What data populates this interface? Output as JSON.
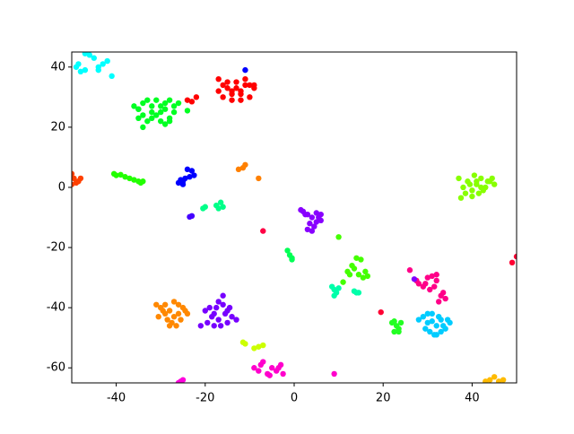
{
  "chart_data": {
    "type": "scatter",
    "xlim": [
      -50,
      50
    ],
    "xticks": [
      -40,
      -20,
      0,
      20,
      40
    ],
    "ylim": [
      -65,
      45
    ],
    "yticks": [
      -60,
      -40,
      -20,
      0,
      20,
      40
    ],
    "series": [
      {
        "color": "#00ffff",
        "x": [
          -49,
          -48,
          -47,
          -46,
          -45,
          -44,
          -43,
          -42,
          -41,
          -47,
          -44,
          -48.5
        ],
        "y": [
          40,
          38.5,
          39,
          44,
          43,
          40,
          41,
          42,
          37,
          44.5,
          39,
          41
        ]
      },
      {
        "color": "#00ff22",
        "x": [
          -36,
          -35,
          -34,
          -33,
          -32,
          -35,
          -34,
          -31,
          -30,
          -29,
          -28,
          -27,
          -30,
          -31,
          -32,
          -33,
          -29,
          -28,
          -27,
          -26,
          -34,
          -35,
          -30,
          -29,
          -24,
          -32,
          -28
        ],
        "y": [
          27,
          26,
          28,
          29,
          27,
          23,
          20,
          24,
          22,
          21,
          23,
          25,
          27,
          29,
          25,
          22,
          28,
          29,
          27,
          28,
          24,
          26,
          25,
          26,
          25.5,
          23,
          22
        ]
      },
      {
        "color": "#ff0000",
        "x": [
          -17,
          -16,
          -15,
          -14,
          -13,
          -12,
          -11,
          -10,
          -9,
          -16,
          -14,
          -12,
          -10,
          -15,
          -13,
          -11,
          -17,
          -24,
          -22,
          -23,
          -9,
          -12,
          -14
        ],
        "y": [
          32,
          34,
          33,
          31,
          35,
          32,
          36,
          34,
          33,
          30,
          29,
          31,
          30,
          35,
          33,
          34,
          36,
          29,
          30,
          28.5,
          34,
          29,
          32
        ]
      },
      {
        "color": "#0000ff",
        "x": [
          -11,
          -26,
          -25.5,
          -25,
          -24.5,
          -24,
          -23,
          -22.5,
          -23.5,
          -25
        ],
        "y": [
          39,
          1.5,
          2.5,
          2,
          3,
          6,
          5.5,
          4,
          3.5,
          1
        ]
      },
      {
        "color": "#ff4000",
        "x": [
          -50,
          -49.5,
          -49,
          -48,
          -48.5,
          -50
        ],
        "y": [
          4.5,
          3,
          1.5,
          3,
          2,
          1
        ]
      },
      {
        "color": "#22ff00",
        "x": [
          -40.5,
          -40,
          -39,
          -38,
          -37,
          -36,
          -35,
          -34.5,
          -34
        ],
        "y": [
          4.5,
          4,
          4.2,
          3.5,
          3,
          2.5,
          2,
          1.5,
          2
        ]
      },
      {
        "color": "#ff8000",
        "x": [
          -12.5,
          -11.5,
          -11,
          -8
        ],
        "y": [
          6,
          6.5,
          7.5,
          3
        ]
      },
      {
        "color": "#00ff88",
        "x": [
          -20.5,
          -20,
          -17.5,
          -16.5,
          -16,
          -17
        ],
        "y": [
          -7,
          -6.5,
          -6,
          -5,
          -6.5,
          -7
        ]
      },
      {
        "color": "#4400ff",
        "x": [
          -23.5,
          -23
        ],
        "y": [
          -9.8,
          -9.5
        ]
      },
      {
        "color": "#ff0044",
        "x": [
          -7
        ],
        "y": [
          -14.5
        ]
      },
      {
        "color": "#8800ff",
        "x": [
          1.5,
          2,
          3,
          4,
          5,
          6,
          3.5,
          4.5,
          5.5,
          2.5,
          3,
          4,
          6,
          5
        ],
        "y": [
          -7.5,
          -8,
          -9,
          -10,
          -8.5,
          -11,
          -12,
          -13,
          -10,
          -9,
          -14,
          -14.5,
          -9,
          -11.5
        ]
      },
      {
        "color": "#00ff55",
        "x": [
          -1.5,
          -1,
          -0.5,
          -0.5
        ],
        "y": [
          -21,
          -22.5,
          -23.5,
          -24
        ]
      },
      {
        "color": "#88ff00",
        "x": [
          37,
          38,
          39,
          40,
          41,
          42,
          43,
          44,
          45,
          38.5,
          40.5,
          42.5,
          44.5,
          39.5,
          41.5,
          43.5,
          40,
          42,
          37.5,
          41
        ],
        "y": [
          3,
          0,
          2,
          -1,
          1,
          3,
          0,
          2,
          1,
          -2,
          4,
          -1,
          3,
          1,
          -2,
          2,
          -3,
          0,
          -3.5,
          2
        ]
      },
      {
        "color": "#44ff00",
        "x": [
          10,
          12,
          13,
          14,
          15,
          16,
          14.5,
          15.5,
          13.5,
          12.5,
          16.5,
          11
        ],
        "y": [
          -16.5,
          -28,
          -26,
          -23.5,
          -24,
          -28,
          -29,
          -30,
          -27,
          -29,
          -29.5,
          -31.5
        ]
      },
      {
        "color": "#00ffaa",
        "x": [
          8.5,
          9,
          9.5,
          10,
          13.5,
          14.5,
          14,
          9
        ],
        "y": [
          -33,
          -34,
          -35,
          -33.5,
          -34.5,
          -35,
          -35,
          -36
        ]
      },
      {
        "color": "#ff0088",
        "x": [
          26,
          27.5,
          28,
          29,
          30,
          31,
          32,
          33,
          34,
          30.5,
          31.5,
          32.5,
          33.5,
          29.5,
          32
        ],
        "y": [
          -27.5,
          -31,
          -32,
          -33,
          -30,
          -29.5,
          -31,
          -36,
          -37,
          -34,
          -33,
          -38,
          -35,
          -32,
          -29
        ]
      },
      {
        "color": "#8000ff",
        "x": [
          27
        ],
        "y": [
          -30.5
        ]
      },
      {
        "color": "#00ccff",
        "x": [
          28,
          29,
          30,
          31,
          32,
          33,
          34,
          35,
          30.5,
          31.5,
          32.5,
          33.5,
          29.5,
          34.5,
          31,
          33,
          30,
          32
        ],
        "y": [
          -44,
          -43,
          -45,
          -42,
          -46,
          -44,
          -47,
          -45,
          -48,
          -49,
          -43,
          -46,
          -47,
          -44,
          -44.5,
          -48,
          -42,
          -49
        ]
      },
      {
        "color": "#22ff22",
        "x": [
          22,
          22.5,
          23,
          23.5,
          24,
          22.5,
          23.5
        ],
        "y": [
          -45,
          -44.5,
          -46,
          -47,
          -45,
          -48,
          -48
        ]
      },
      {
        "color": "#ff8800",
        "x": [
          -31,
          -30,
          -29,
          -28,
          -27,
          -26,
          -25,
          -24,
          -30.5,
          -29.5,
          -28.5,
          -27.5,
          -26.5,
          -25.5,
          -24.5,
          -27,
          -28,
          -26,
          -29
        ],
        "y": [
          -39,
          -40,
          -42,
          -41,
          -43,
          -39,
          -40,
          -42,
          -43,
          -41,
          -44,
          -45,
          -46,
          -44,
          -41,
          -38,
          -46,
          -42,
          -39
        ]
      },
      {
        "color": "#7700ff",
        "x": [
          -20,
          -19,
          -18,
          -17,
          -16,
          -15,
          -14,
          -13,
          -19.5,
          -18.5,
          -17.5,
          -16.5,
          -15.5,
          -14.5,
          -16,
          -18,
          -17,
          -15,
          -21
        ],
        "y": [
          -41,
          -40,
          -42,
          -44,
          -39,
          -41,
          -43,
          -44,
          -45,
          -43,
          -40,
          -46,
          -42,
          -40,
          -36,
          -46,
          -38,
          -45,
          -46
        ]
      },
      {
        "color": "#ccff00",
        "x": [
          -11.5,
          -11,
          -9,
          -8,
          -7
        ],
        "y": [
          -51.5,
          -52,
          -53.5,
          -53,
          -52.5
        ]
      },
      {
        "color": "#ff00cc",
        "x": [
          -9,
          -8,
          -7,
          -6,
          -5,
          -4,
          -3,
          -2.5,
          -7.5,
          -5.5,
          -3.5,
          9
        ],
        "y": [
          -60,
          -61,
          -58,
          -62,
          -60,
          -61,
          -59,
          -62,
          -59,
          -62.5,
          -60,
          -62
        ]
      },
      {
        "color": "#ff00dd",
        "x": [
          -26,
          -25.5,
          -25
        ],
        "y": [
          -65,
          -64.5,
          -64
        ]
      },
      {
        "color": "#ffbb00",
        "x": [
          43,
          44,
          45,
          46,
          47
        ],
        "y": [
          -64.5,
          -64,
          -63,
          -64.5,
          -64
        ]
      },
      {
        "color": "#ff0033",
        "x": [
          49,
          50,
          19.5
        ],
        "y": [
          -25,
          -23,
          -41.5
        ]
      }
    ]
  }
}
